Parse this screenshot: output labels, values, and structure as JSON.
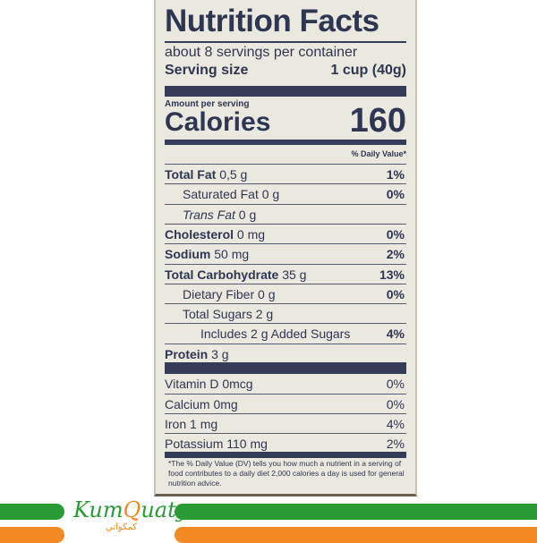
{
  "label": {
    "title": "Nutrition Facts",
    "servings": "about 8 servings per container",
    "serving_size_label": "Serving size",
    "serving_size_value": "1 cup (40g)",
    "amount_per_serving": "Amount per serving",
    "calories_label": "Calories",
    "calories_value": "160",
    "dv_header": "% Daily Value*",
    "rows": [
      {
        "name": "Total Fat",
        "amount": "0,5 g",
        "dv": "1%"
      },
      {
        "name": "Saturated Fat",
        "amount": "0 g",
        "dv": "0%"
      },
      {
        "name": "Trans Fat",
        "amount": "0 g",
        "dv": ""
      },
      {
        "name": "Cholesterol",
        "amount": "0 mg",
        "dv": "0%"
      },
      {
        "name": "Sodium",
        "amount": "50 mg",
        "dv": "2%"
      },
      {
        "name": "Total Carbohydrate",
        "amount": "35 g",
        "dv": "13%"
      },
      {
        "name": "Dietary Fiber",
        "amount": "0 g",
        "dv": "0%"
      },
      {
        "name": "Total Sugars",
        "amount": "2 g",
        "dv": ""
      },
      {
        "name": "Includes 2 g Added Sugars",
        "amount": "",
        "dv": "4%"
      },
      {
        "name": "Protein",
        "amount": "3 g",
        "dv": ""
      }
    ],
    "vitamins": [
      {
        "name": "Vitamin D",
        "amount": "0mcg",
        "dv": "0%"
      },
      {
        "name": "Calcium",
        "amount": "0mg",
        "dv": "0%"
      },
      {
        "name": "Iron",
        "amount": "1 mg",
        "dv": "4%"
      },
      {
        "name": "Potassium",
        "amount": "110 mg",
        "dv": "2%"
      }
    ],
    "footnote": "*The % Daily Value (DV) tells you how much a nutrient in a serving of food contributes to a daily diet 2,000 calories a day is used for general nutrition advice."
  },
  "brand": {
    "logo_text_a": "Kum",
    "logo_text_q": "Q",
    "logo_text_b": "uaty",
    "logo_arabic": "كمكواتي",
    "colors": {
      "green": "#2a9a35",
      "orange": "#f18a22"
    }
  }
}
